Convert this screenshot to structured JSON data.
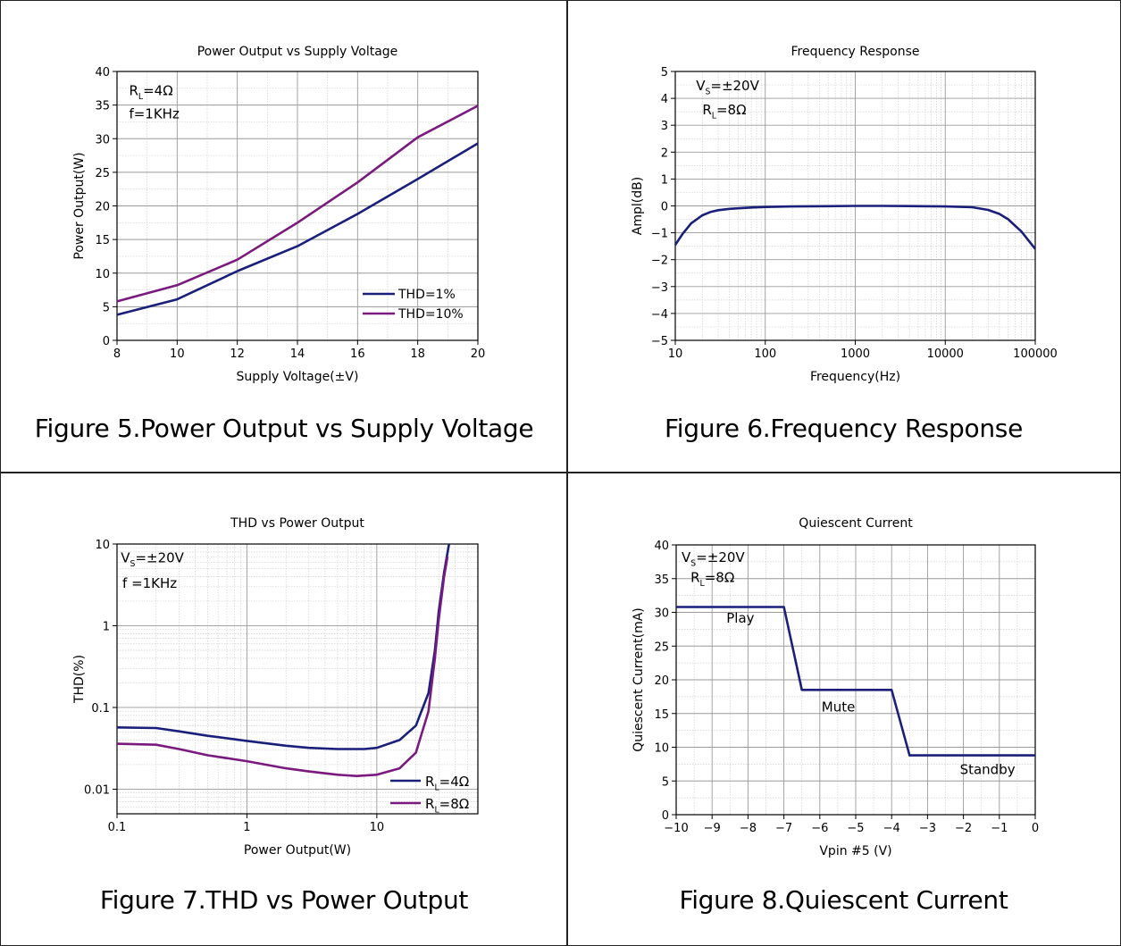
{
  "captions": {
    "fig5": "Figure 5.Power Output vs Supply Voltage",
    "fig6": "Figure 6.Frequency Response",
    "fig7": "Figure 7.THD vs Power Output",
    "fig8": "Figure 8.Quiescent Current"
  },
  "chart_data": [
    {
      "id": "fig5",
      "type": "line",
      "title": "Power Output vs Supply Voltage",
      "xlabel": "Supply Voltage(±V)",
      "ylabel": "Power Output(W)",
      "xlim": [
        8,
        20
      ],
      "ylim": [
        0,
        40
      ],
      "xscale": "linear",
      "yscale": "linear",
      "xticks": [
        8,
        10,
        12,
        14,
        16,
        18,
        20
      ],
      "yticks": [
        0,
        5,
        10,
        15,
        20,
        25,
        30,
        35,
        40
      ],
      "grid": true,
      "legend_position": "lower-right",
      "annotations": [
        {
          "base": "R",
          "sub": "L",
          "rest": "=4Ω",
          "x": 8.4,
          "y": 36.5
        },
        {
          "base": "f=1KHz",
          "sub": "",
          "rest": "",
          "x": 8.4,
          "y": 33.0
        }
      ],
      "series": [
        {
          "name": "THD=1%",
          "color": "#1a1f7a",
          "x": [
            8,
            10,
            12,
            14,
            16,
            18,
            20
          ],
          "y": [
            3.8,
            6.1,
            10.3,
            14.0,
            18.8,
            24.0,
            29.3
          ]
        },
        {
          "name": "THD=10%",
          "color": "#7a1a7e",
          "x": [
            8,
            10,
            12,
            14,
            16,
            18,
            20
          ],
          "y": [
            5.8,
            8.2,
            12.0,
            17.5,
            23.5,
            30.2,
            34.9
          ]
        }
      ]
    },
    {
      "id": "fig6",
      "type": "line",
      "title": "Frequency Response",
      "xlabel": "Frequency(Hz)",
      "ylabel": "Ampl(dB)",
      "xlim": [
        10,
        100000
      ],
      "ylim": [
        -5,
        5
      ],
      "xscale": "log",
      "yscale": "linear",
      "xticks": [
        10,
        100,
        1000,
        10000,
        100000
      ],
      "yticks": [
        -5,
        -4,
        -3,
        -2,
        -1,
        0,
        1,
        2,
        3,
        4,
        5
      ],
      "grid": true,
      "annotations": [
        {
          "base": "V",
          "sub": "S",
          "rest": "=±20V",
          "x": 17,
          "y": 4.3
        },
        {
          "base": "R",
          "sub": "L",
          "rest": "=8Ω",
          "x": 20,
          "y": 3.4
        }
      ],
      "series": [
        {
          "name": "",
          "color": "#1a1f7a",
          "x": [
            10,
            12,
            15,
            20,
            25,
            30,
            40,
            50,
            70,
            100,
            200,
            500,
            1000,
            2000,
            5000,
            10000,
            20000,
            30000,
            40000,
            50000,
            70000,
            100000
          ],
          "y": [
            -1.45,
            -1.05,
            -0.65,
            -0.35,
            -0.22,
            -0.16,
            -0.11,
            -0.09,
            -0.06,
            -0.04,
            -0.02,
            -0.01,
            0,
            0,
            -0.01,
            -0.02,
            -0.05,
            -0.15,
            -0.3,
            -0.5,
            -0.95,
            -1.6
          ]
        }
      ]
    },
    {
      "id": "fig7",
      "type": "line",
      "title": "THD vs Power Output",
      "xlabel": "Power Output(W)",
      "ylabel": "THD(%)",
      "xlim": [
        0.1,
        60
      ],
      "ylim": [
        0.005,
        10
      ],
      "xscale": "log",
      "yscale": "log",
      "xticks": [
        0.1,
        1,
        10
      ],
      "yticks": [
        0.01,
        0.1,
        1,
        10
      ],
      "grid": true,
      "legend_position": "lower-right",
      "annotations": [
        {
          "base": "V",
          "sub": "S",
          "rest": "=±20V",
          "x": 0.107,
          "y": 6.0
        },
        {
          "base": "f =1KHz",
          "sub": "",
          "rest": "",
          "x": 0.11,
          "y": 2.9
        }
      ],
      "series": [
        {
          "name": "R_L=4Ω",
          "label_base": "R",
          "label_sub": "L",
          "label_rest": "=4Ω",
          "color": "#1a1f7a",
          "x": [
            0.1,
            0.2,
            0.3,
            0.5,
            1,
            2,
            3,
            5,
            8,
            10,
            15,
            20,
            25,
            28,
            30,
            33,
            36
          ],
          "y": [
            0.057,
            0.056,
            0.051,
            0.045,
            0.039,
            0.034,
            0.032,
            0.031,
            0.031,
            0.032,
            0.04,
            0.06,
            0.15,
            0.5,
            1.5,
            4.5,
            10
          ]
        },
        {
          "name": "R_L=8Ω",
          "label_base": "R",
          "label_sub": "L",
          "label_rest": "=8Ω",
          "color": "#7a1a7e",
          "x": [
            0.1,
            0.2,
            0.3,
            0.5,
            1,
            2,
            3,
            5,
            7,
            10,
            15,
            20,
            25,
            28,
            30,
            33,
            35
          ],
          "y": [
            0.036,
            0.035,
            0.031,
            0.026,
            0.022,
            0.018,
            0.0165,
            0.015,
            0.0145,
            0.015,
            0.018,
            0.028,
            0.09,
            0.4,
            1.2,
            4.0,
            7.0
          ]
        }
      ]
    },
    {
      "id": "fig8",
      "type": "line",
      "title": "Quiescent Current",
      "xlabel": "Vpin #5 (V)",
      "ylabel": "Quiescent Current(mA)",
      "xlim": [
        -10,
        0
      ],
      "ylim": [
        0,
        40
      ],
      "xscale": "linear",
      "yscale": "linear",
      "xticks": [
        -10,
        -9,
        -8,
        -7,
        -6,
        -5,
        -4,
        -3,
        -2,
        -1,
        0
      ],
      "yticks": [
        0,
        5,
        10,
        15,
        20,
        25,
        30,
        35,
        40
      ],
      "grid": true,
      "annotations": [
        {
          "base": "V",
          "sub": "S",
          "rest": "=±20V",
          "x": -9.85,
          "y": 37.5
        },
        {
          "base": "R",
          "sub": "L",
          "rest": "=8Ω",
          "x": -9.6,
          "y": 34.5
        },
        {
          "base": "Play",
          "sub": "",
          "rest": "",
          "x": -8.6,
          "y": 28.5
        },
        {
          "base": "Mute",
          "sub": "",
          "rest": "",
          "x": -5.95,
          "y": 15.3
        },
        {
          "base": "Standby",
          "sub": "",
          "rest": "",
          "x": -2.1,
          "y": 6.0
        }
      ],
      "series": [
        {
          "name": "",
          "color": "#1a1f7a",
          "x": [
            -10,
            -7,
            -6.5,
            -4,
            -3.5,
            0
          ],
          "y": [
            30.8,
            30.8,
            18.5,
            18.5,
            8.8,
            8.8
          ]
        }
      ]
    }
  ]
}
